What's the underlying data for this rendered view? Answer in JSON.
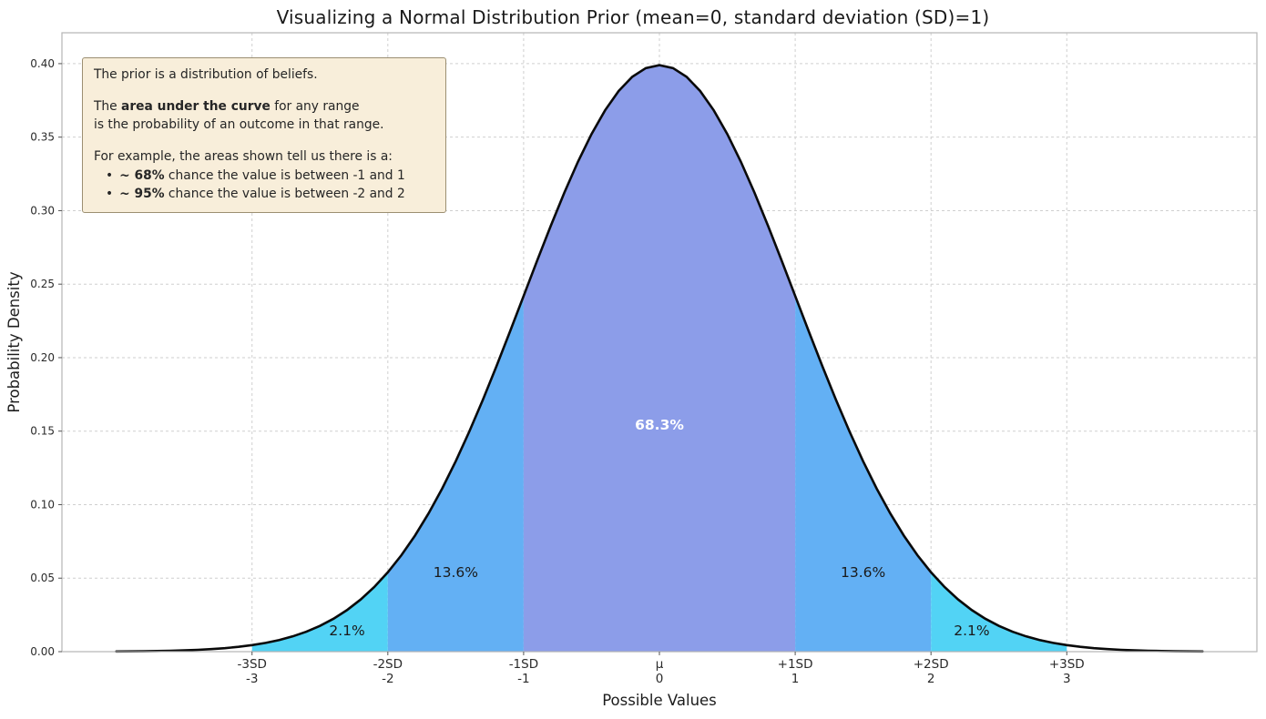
{
  "note": {
    "line1": "The prior is a distribution of beliefs.",
    "line2_pre": "The ",
    "line2_bold": "area under the curve",
    "line2_post": " for any range",
    "line3": "is the probability of an outcome in that range.",
    "line4": "For example, the areas shown tell us there is a:",
    "bullet": "•",
    "bullet1_bold": "~ 68%",
    "bullet1_text": " chance the value is between -1 and 1",
    "bullet2_bold": "~ 95%",
    "bullet2_text": " chance the value is between -2 and 2"
  },
  "chart_data": {
    "type": "area",
    "title": "Visualizing a Normal Distribution Prior (mean=0, standard deviation (SD)=1)",
    "xlabel": "Possible Values",
    "ylabel": "Probability Density",
    "xlim": [
      -4.4,
      4.4
    ],
    "ylim": [
      0,
      0.421
    ],
    "curve_range": [
      -4,
      4
    ],
    "grid": true,
    "grid_color": "#cfcfcf",
    "curve_color": "#0a0a0a",
    "frame_color": "#b5b5b5",
    "distribution": {
      "mean": 0,
      "sd": 1
    },
    "y_ticks": [
      0.0,
      0.05,
      0.1,
      0.15,
      0.2,
      0.25,
      0.3,
      0.35,
      0.4
    ],
    "x_ticks": [
      {
        "x": -3,
        "sd_label": "-3SD",
        "value_label": "-3"
      },
      {
        "x": -2,
        "sd_label": "-2SD",
        "value_label": "-2"
      },
      {
        "x": -1,
        "sd_label": "-1SD",
        "value_label": "-1"
      },
      {
        "x": 0,
        "sd_label": "μ",
        "value_label": "0"
      },
      {
        "x": 1,
        "sd_label": "+1SD",
        "value_label": "1"
      },
      {
        "x": 2,
        "sd_label": "+2SD",
        "value_label": "2"
      },
      {
        "x": 3,
        "sd_label": "+3SD",
        "value_label": "3"
      }
    ],
    "regions": [
      {
        "from": -3,
        "to": -2,
        "color": "#52d3f5",
        "label": "2.1%",
        "label_x": -2.3,
        "label_y": 0.0142,
        "label_color": "#1a1a1a",
        "label_bold": false
      },
      {
        "from": -2,
        "to": -1,
        "color": "#63b0f4",
        "label": "13.6%",
        "label_x": -1.5,
        "label_y": 0.0539,
        "label_color": "#1a1a1a",
        "label_bold": false
      },
      {
        "from": -1,
        "to": 1,
        "color": "#8c9de9",
        "label": "68.3%",
        "label_x": 0,
        "label_y": 0.1542,
        "label_color": "#ffffff",
        "label_bold": true
      },
      {
        "from": 1,
        "to": 2,
        "color": "#63b0f4",
        "label": "13.6%",
        "label_x": 1.5,
        "label_y": 0.0539,
        "label_color": "#1a1a1a",
        "label_bold": false
      },
      {
        "from": 2,
        "to": 3,
        "color": "#52d3f5",
        "label": "2.1%",
        "label_x": 2.3,
        "label_y": 0.0142,
        "label_color": "#1a1a1a",
        "label_bold": false
      }
    ]
  }
}
